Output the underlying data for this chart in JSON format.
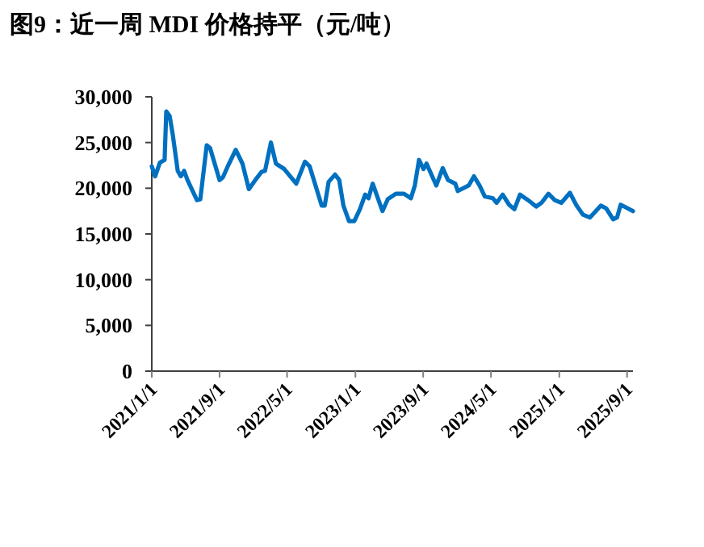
{
  "chart_data": {
    "type": "line",
    "title": "图9：近一周 MDI 价格持平（元/吨）",
    "x": [
      "2021-01-01",
      "2021-01-13",
      "2021-01-30",
      "2021-02-16",
      "2021-02-22",
      "2021-03-06",
      "2021-03-17",
      "2021-04-04",
      "2021-04-15",
      "2021-04-27",
      "2021-05-09",
      "2021-06-12",
      "2021-06-24",
      "2021-07-17",
      "2021-07-29",
      "2021-09-01",
      "2021-09-13",
      "2021-10-02",
      "2021-10-29",
      "2021-11-22",
      "2021-12-15",
      "2022-01-07",
      "2022-01-30",
      "2022-02-11",
      "2022-03-04",
      "2022-03-22",
      "2022-04-21",
      "2022-06-03",
      "2022-07-04",
      "2022-07-21",
      "2022-09-02",
      "2022-09-13",
      "2022-09-27",
      "2022-10-20",
      "2022-11-04",
      "2022-11-19",
      "2022-12-09",
      "2022-12-28",
      "2023-01-17",
      "2023-02-05",
      "2023-02-17",
      "2023-03-04",
      "2023-04-08",
      "2023-04-27",
      "2023-05-26",
      "2023-06-24",
      "2023-07-19",
      "2023-08-02",
      "2023-08-17",
      "2023-09-02",
      "2023-09-13",
      "2023-10-18",
      "2023-11-10",
      "2023-11-29",
      "2023-12-25",
      "2024-01-03",
      "2024-02-11",
      "2024-03-01",
      "2024-03-21",
      "2024-04-09",
      "2024-05-08",
      "2024-05-21",
      "2024-06-12",
      "2024-07-05",
      "2024-07-24",
      "2024-08-13",
      "2024-09-11",
      "2024-10-10",
      "2024-10-29",
      "2024-11-23",
      "2024-12-16",
      "2025-01-08",
      "2025-02-08",
      "2025-03-04",
      "2025-03-27",
      "2025-04-21",
      "2025-05-30",
      "2025-06-18",
      "2025-07-13",
      "2025-07-27",
      "2025-08-09",
      "2025-09-03",
      "2025-09-22"
    ],
    "series": [
      {
        "color": "#0070c0",
        "values": [
          22400,
          21300,
          22800,
          23100,
          28400,
          27900,
          25900,
          21900,
          21300,
          21900,
          20900,
          18700,
          18800,
          24700,
          24400,
          20900,
          21200,
          22500,
          24200,
          22700,
          19900,
          20900,
          21800,
          21900,
          25000,
          22700,
          22100,
          20500,
          22900,
          22400,
          18100,
          18100,
          20700,
          21500,
          20900,
          18100,
          16400,
          16400,
          17700,
          19300,
          18900,
          20500,
          17500,
          18800,
          19400,
          19400,
          18900,
          20300,
          23100,
          22100,
          22700,
          20300,
          22200,
          20900,
          20500,
          19700,
          20300,
          21300,
          20300,
          19100,
          18900,
          18400,
          19300,
          18200,
          17700,
          19300,
          18700,
          18000,
          18400,
          19400,
          18700,
          18400,
          19500,
          18100,
          17100,
          16800,
          18100,
          17800,
          16600,
          16800,
          18200,
          17800,
          17500
        ]
      }
    ],
    "xlim": [
      "2021-01-01",
      "2025-09-22"
    ],
    "xticks": [
      {
        "value": "2021-01-01",
        "label": "2021/1/1"
      },
      {
        "value": "2021-09-01",
        "label": "2021/9/1"
      },
      {
        "value": "2022-05-01",
        "label": "2022/5/1"
      },
      {
        "value": "2023-01-01",
        "label": "2023/1/1"
      },
      {
        "value": "2023-09-01",
        "label": "2023/9/1"
      },
      {
        "value": "2024-05-01",
        "label": "2024/5/1"
      },
      {
        "value": "2025-01-01",
        "label": "2025/1/1"
      },
      {
        "value": "2025-09-01",
        "label": "2025/9/1"
      }
    ],
    "ylim": [
      0,
      30000
    ],
    "yticks": [
      0,
      {
        "value": 5000,
        "label": "5,000"
      },
      {
        "value": 10000,
        "label": "10,000"
      },
      {
        "value": 15000,
        "label": "15,000"
      },
      {
        "value": 20000,
        "label": "20,000"
      },
      {
        "value": 25000,
        "label": "25,000"
      },
      {
        "value": 30000,
        "label": "30,000"
      }
    ]
  }
}
